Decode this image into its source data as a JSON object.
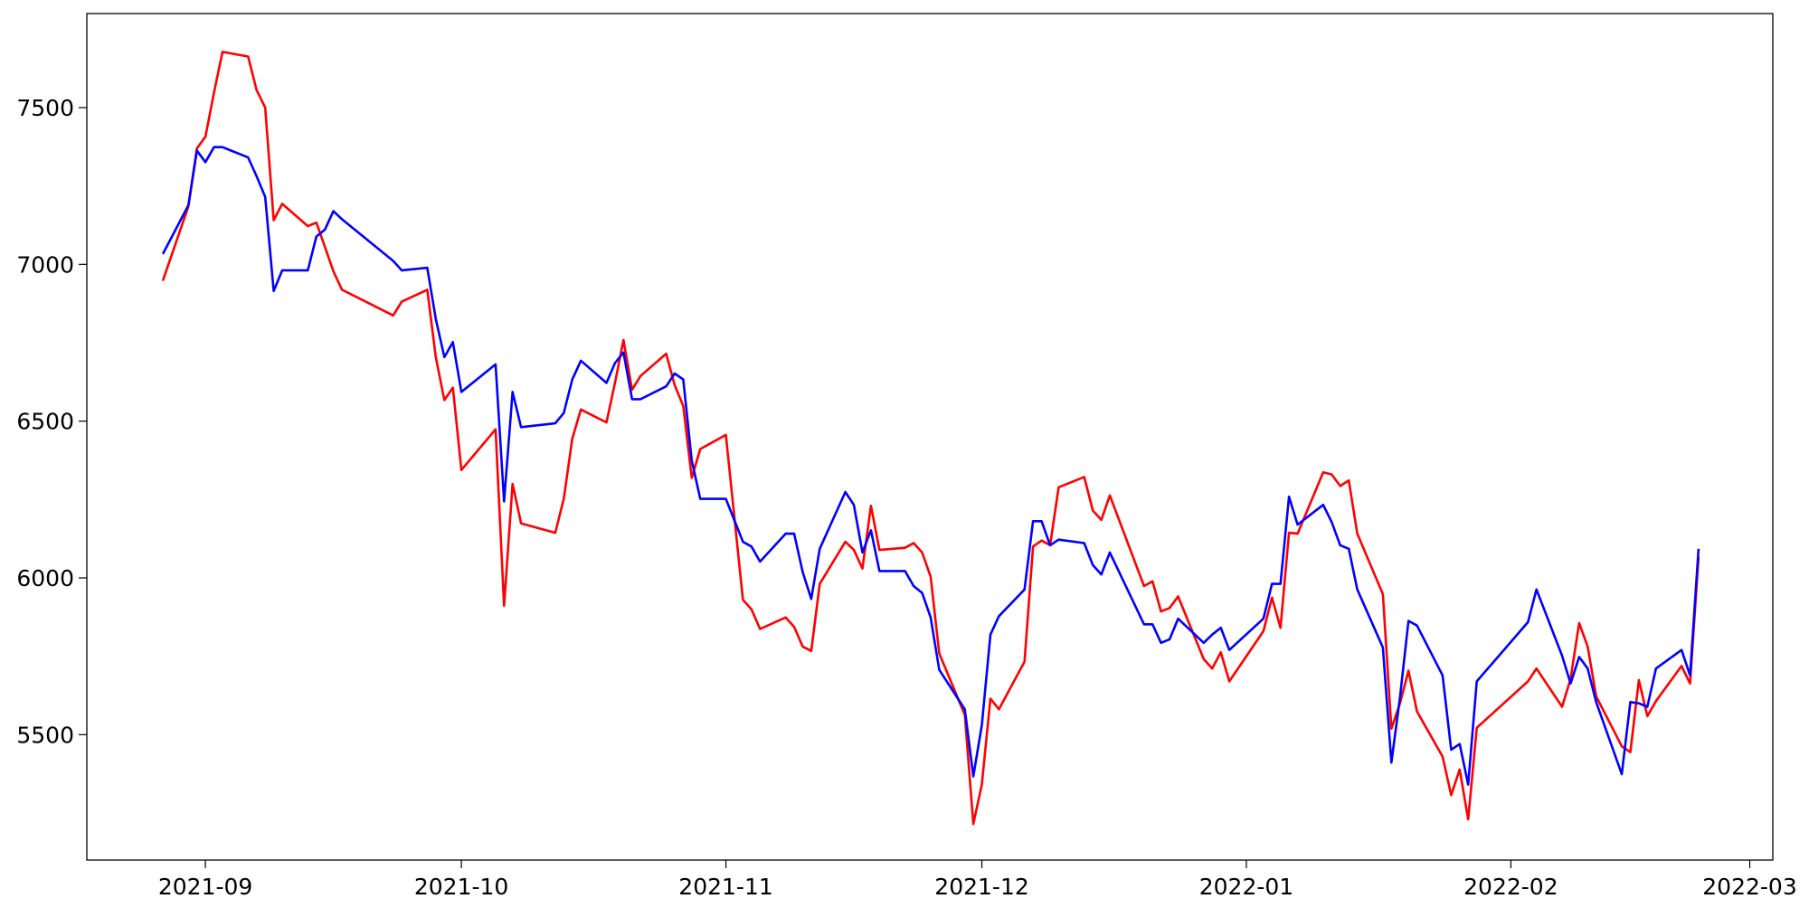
{
  "chart_data": {
    "type": "line",
    "x": [
      -5,
      -2,
      -1,
      0,
      1,
      2,
      5,
      6,
      7,
      8,
      9,
      12,
      13,
      14,
      15,
      16,
      22,
      23,
      26,
      27,
      28,
      29,
      30,
      34,
      35,
      36,
      37,
      41,
      42,
      43,
      44,
      47,
      48,
      49,
      50,
      51,
      54,
      55,
      56,
      57,
      58,
      61,
      63,
      64,
      65,
      68,
      69,
      70,
      71,
      72,
      75,
      76,
      77,
      78,
      79,
      82,
      83,
      84,
      85,
      86,
      89,
      90,
      91,
      92,
      93,
      96,
      97,
      98,
      99,
      100,
      103,
      104,
      105,
      106,
      110,
      111,
      112,
      113,
      114,
      117,
      118,
      119,
      120,
      124,
      125,
      126,
      127,
      128,
      131,
      132,
      133,
      134,
      135,
      138,
      139,
      140,
      141,
      142,
      145,
      146,
      147,
      148,
      149,
      155,
      156,
      159,
      160,
      161,
      162,
      163,
      166,
      167,
      168,
      169,
      170,
      173,
      174,
      175
    ],
    "series": [
      {
        "color": "#ff0000",
        "values": [
          6948,
          7185,
          7370,
          7407,
          7548,
          7678,
          7663,
          7556,
          7500,
          7141,
          7193,
          7122,
          7133,
          7056,
          6978,
          6919,
          6837,
          6881,
          6919,
          6704,
          6567,
          6607,
          6344,
          6474,
          5911,
          6300,
          6174,
          6144,
          6252,
          6444,
          6537,
          6496,
          6622,
          6759,
          6600,
          6644,
          6715,
          6615,
          6548,
          6319,
          6411,
          6456,
          5930,
          5900,
          5837,
          5874,
          5844,
          5781,
          5767,
          5981,
          6115,
          6089,
          6030,
          6230,
          6089,
          6096,
          6111,
          6081,
          6004,
          5759,
          5563,
          5215,
          5341,
          5615,
          5581,
          5733,
          6100,
          6119,
          6104,
          6289,
          6322,
          6215,
          6185,
          6263,
          5974,
          5989,
          5893,
          5904,
          5941,
          5741,
          5711,
          5763,
          5670,
          5830,
          5937,
          5841,
          6144,
          6141,
          6337,
          6330,
          6293,
          6311,
          6141,
          5948,
          5519,
          5600,
          5704,
          5574,
          5430,
          5307,
          5389,
          5230,
          5522,
          5670,
          5711,
          5589,
          5678,
          5856,
          5781,
          5622,
          5463,
          5444,
          5674,
          5559,
          5607,
          5719,
          5663,
          6067
        ]
      },
      {
        "color": "#0000ff",
        "values": [
          7033,
          7189,
          7363,
          7326,
          7374,
          7374,
          7341,
          7281,
          7215,
          6915,
          6981,
          6981,
          7089,
          7111,
          7170,
          7144,
          7011,
          6981,
          6989,
          6826,
          6704,
          6752,
          6593,
          6681,
          6244,
          6593,
          6481,
          6493,
          6526,
          6633,
          6693,
          6622,
          6685,
          6719,
          6570,
          6570,
          6611,
          6652,
          6633,
          6374,
          6252,
          6252,
          6115,
          6100,
          6052,
          6141,
          6141,
          6019,
          5933,
          6093,
          6274,
          6233,
          6081,
          6152,
          6022,
          6022,
          5974,
          5952,
          5874,
          5707,
          5581,
          5367,
          5530,
          5819,
          5878,
          5963,
          6181,
          6181,
          6104,
          6122,
          6111,
          6041,
          6011,
          6081,
          5852,
          5852,
          5793,
          5804,
          5870,
          5793,
          5819,
          5841,
          5770,
          5870,
          5981,
          5981,
          6259,
          6170,
          6233,
          6178,
          6104,
          6093,
          5963,
          5778,
          5411,
          5619,
          5863,
          5848,
          5689,
          5452,
          5470,
          5341,
          5670,
          5859,
          5963,
          5752,
          5663,
          5748,
          5711,
          5604,
          5374,
          5604,
          5600,
          5589,
          5711,
          5770,
          5689,
          6093
        ]
      }
    ],
    "xlim": [
      -13.9,
      183.7
    ],
    "xticks": [
      {
        "value": 0,
        "label": "2021-09"
      },
      {
        "value": 30,
        "label": "2021-10"
      },
      {
        "value": 61,
        "label": "2021-11"
      },
      {
        "value": 91,
        "label": "2021-12"
      },
      {
        "value": 122,
        "label": "2022-01"
      },
      {
        "value": 153,
        "label": "2022-02"
      },
      {
        "value": 181,
        "label": "2022-03"
      }
    ],
    "ylim": [
      5100,
      7800
    ],
    "yticks": [
      5500,
      6000,
      6500,
      7000,
      7500
    ]
  }
}
